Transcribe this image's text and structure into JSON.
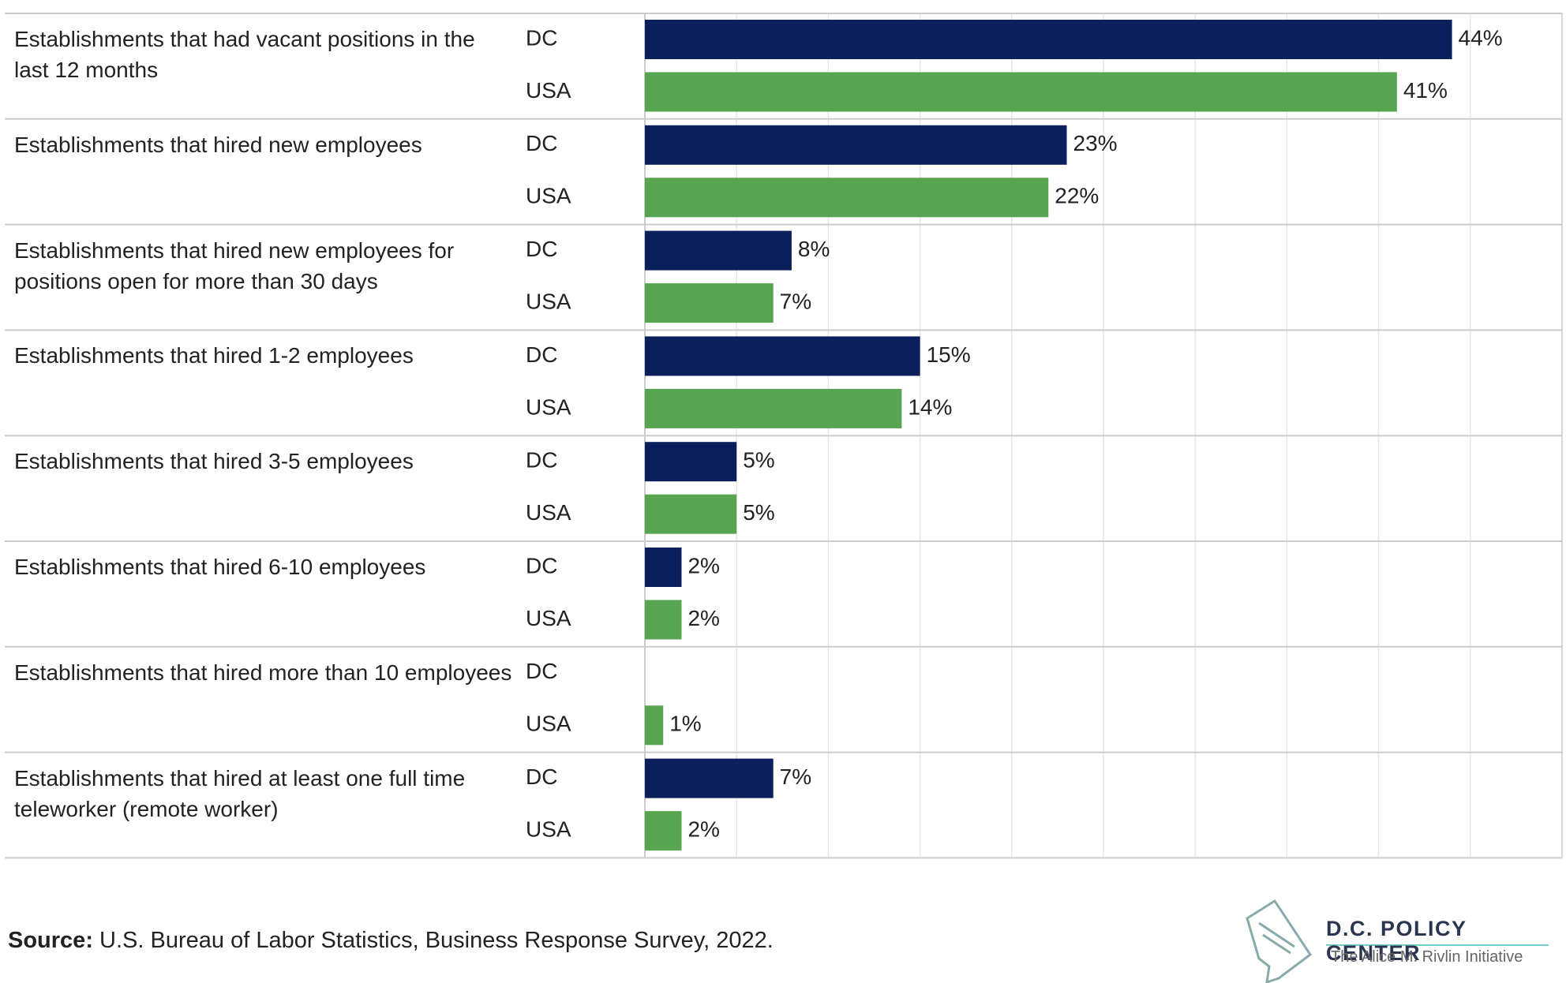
{
  "chart_data": {
    "type": "hbar",
    "categories": [
      "Establishments that had vacant positions in the last 12 months",
      "Establishments that hired new employees",
      "Establishments that hired new employees for positions open for more than 30 days",
      "Establishments that hired 1-2 employees",
      "Establishments that hired 3-5 employees",
      "Establishments that hired 6-10 employees",
      "Establishments that hired more than 10 employees",
      "Establishments that hired at least one full time teleworker (remote worker)"
    ],
    "series": [
      {
        "name": "DC",
        "color": "#0a1f5c",
        "values": [
          44,
          23,
          8,
          15,
          5,
          2,
          null,
          7
        ],
        "value_labels": [
          "44%",
          "23%",
          "8%",
          "15%",
          "5%",
          "2%",
          null,
          "7%"
        ]
      },
      {
        "name": "USA",
        "color": "#57a550",
        "values": [
          41,
          22,
          7,
          14,
          5,
          2,
          1,
          2
        ],
        "value_labels": [
          "41%",
          "22%",
          "7%",
          "14%",
          "5%",
          "2%",
          "1%",
          "2%"
        ]
      }
    ],
    "xlim": [
      0,
      50
    ],
    "xticks": [
      0,
      5,
      10,
      15,
      20,
      25,
      30,
      35,
      40,
      45
    ],
    "grid": true,
    "source_label": "Source:",
    "source": "U.S. Bureau of Labor Statistics, Business Response Survey, 2022.",
    "logo_title": "D.C. POLICY CENTER",
    "logo_subtitle": "The Alice M. Rivlin Initiative"
  }
}
